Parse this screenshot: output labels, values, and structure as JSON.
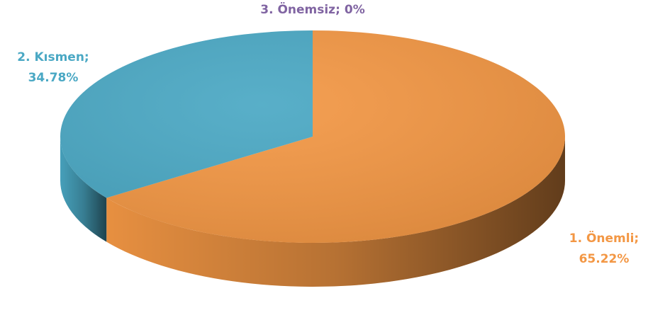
{
  "chart_data": {
    "type": "pie",
    "categories": [
      "1. Önemli",
      "2. Kısmen",
      "3. Önemsiz"
    ],
    "values": [
      65.22,
      34.78,
      0
    ],
    "value_labels": [
      "65.22%",
      "34.78%",
      "0%"
    ],
    "label_separator": ";",
    "colors": [
      "#f39744",
      "#4aa8c4",
      "#8064a2"
    ]
  }
}
